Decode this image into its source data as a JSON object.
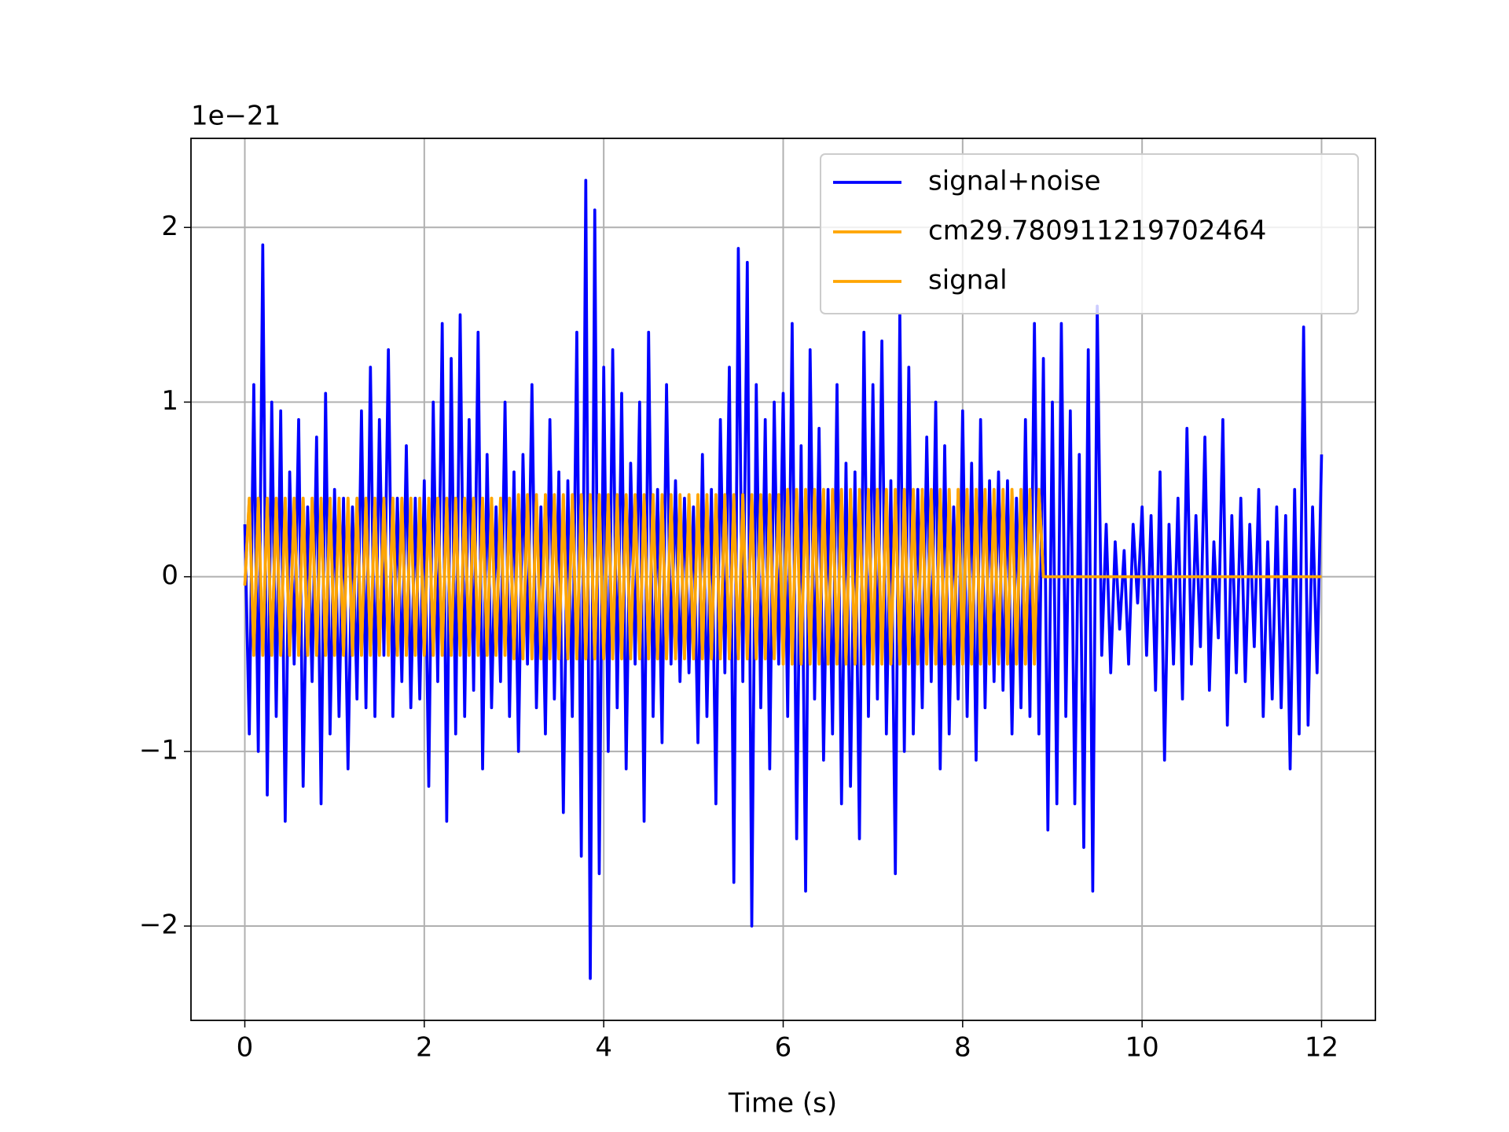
{
  "chart_data": {
    "type": "line",
    "offset_text": "1e−21",
    "x_label": "Time (s)",
    "grid": true,
    "legend": "upper right",
    "xlim": [
      -0.6,
      12.6
    ],
    "ylim": [
      -2.54,
      2.51
    ],
    "xticks": [
      0,
      2,
      4,
      6,
      8,
      10,
      12
    ],
    "yticks": [
      {
        "value": -2,
        "label": "−2"
      },
      {
        "value": -1,
        "label": "−1"
      },
      0,
      1,
      2
    ],
    "x": [
      0,
      0.05,
      0.1,
      0.15,
      0.2,
      0.25,
      0.3,
      0.35,
      0.4,
      0.45,
      0.5,
      0.55,
      0.6,
      0.65,
      0.7,
      0.75,
      0.8,
      0.85,
      0.9,
      0.95,
      1,
      1.05,
      1.1,
      1.15,
      1.2,
      1.25,
      1.3,
      1.35,
      1.4,
      1.45,
      1.5,
      1.55,
      1.6,
      1.65,
      1.7,
      1.75,
      1.8,
      1.85,
      1.9,
      1.95,
      2,
      2.05,
      2.1,
      2.15,
      2.2,
      2.25,
      2.3,
      2.35,
      2.4,
      2.45,
      2.5,
      2.55,
      2.6,
      2.65,
      2.7,
      2.75,
      2.8,
      2.85,
      2.9,
      2.95,
      3,
      3.05,
      3.1,
      3.15,
      3.2,
      3.25,
      3.3,
      3.35,
      3.4,
      3.45,
      3.5,
      3.55,
      3.6,
      3.65,
      3.7,
      3.75,
      3.8,
      3.85,
      3.9,
      3.95,
      4,
      4.05,
      4.1,
      4.15,
      4.2,
      4.25,
      4.3,
      4.35,
      4.4,
      4.45,
      4.5,
      4.55,
      4.6,
      4.65,
      4.7,
      4.75,
      4.8,
      4.85,
      4.9,
      4.95,
      5,
      5.05,
      5.1,
      5.15,
      5.2,
      5.25,
      5.3,
      5.35,
      5.4,
      5.45,
      5.5,
      5.55,
      5.6,
      5.65,
      5.7,
      5.75,
      5.8,
      5.85,
      5.9,
      5.95,
      6,
      6.05,
      6.1,
      6.15,
      6.2,
      6.25,
      6.3,
      6.35,
      6.4,
      6.45,
      6.5,
      6.55,
      6.6,
      6.65,
      6.7,
      6.75,
      6.8,
      6.85,
      6.9,
      6.95,
      7,
      7.05,
      7.1,
      7.15,
      7.2,
      7.25,
      7.3,
      7.35,
      7.4,
      7.45,
      7.5,
      7.55,
      7.6,
      7.65,
      7.7,
      7.75,
      7.8,
      7.85,
      7.9,
      7.95,
      8,
      8.05,
      8.1,
      8.15,
      8.2,
      8.25,
      8.3,
      8.35,
      8.4,
      8.45,
      8.5,
      8.55,
      8.6,
      8.65,
      8.7,
      8.75,
      8.8,
      8.85,
      8.9,
      8.95,
      9,
      9.05,
      9.1,
      9.15,
      9.2,
      9.25,
      9.3,
      9.35,
      9.4,
      9.45,
      9.5,
      9.55,
      9.6,
      9.65,
      9.7,
      9.75,
      9.8,
      9.85,
      9.9,
      9.95,
      10,
      10.05,
      10.1,
      10.15,
      10.2,
      10.25,
      10.3,
      10.35,
      10.4,
      10.45,
      10.5,
      10.55,
      10.6,
      10.65,
      10.7,
      10.75,
      10.8,
      10.85,
      10.9,
      10.95,
      11,
      11.05,
      11.1,
      11.15,
      11.2,
      11.25,
      11.3,
      11.35,
      11.4,
      11.45,
      11.5,
      11.55,
      11.6,
      11.65,
      11.7,
      11.75,
      11.8,
      11.85,
      11.9,
      11.95,
      12
    ],
    "series": [
      {
        "name": "signal+noise",
        "color": "#0000ff",
        "values": [
          0.3,
          -0.9,
          1.1,
          -1.0,
          1.9,
          -1.25,
          1.0,
          -0.8,
          0.95,
          -1.4,
          0.6,
          -0.5,
          0.9,
          -1.2,
          0.4,
          -0.6,
          0.8,
          -1.3,
          1.05,
          -0.9,
          0.5,
          -0.8,
          0.45,
          -1.1,
          0.4,
          -0.7,
          0.95,
          -0.75,
          1.2,
          -0.8,
          0.9,
          -0.45,
          1.3,
          -0.8,
          0.45,
          -0.6,
          0.75,
          -0.75,
          0.45,
          -0.7,
          0.55,
          -1.2,
          1.0,
          -0.6,
          1.45,
          -1.4,
          1.25,
          -0.9,
          1.5,
          -0.8,
          0.9,
          -0.65,
          1.4,
          -1.1,
          0.7,
          -0.75,
          0.4,
          -0.6,
          1.0,
          -0.8,
          0.6,
          -1.0,
          0.7,
          -0.5,
          1.1,
          -0.75,
          0.4,
          -0.9,
          0.9,
          -0.7,
          0.6,
          -1.35,
          0.55,
          -0.8,
          1.4,
          -1.6,
          2.27,
          -2.3,
          2.1,
          -1.7,
          1.2,
          -1.0,
          1.3,
          -0.75,
          1.05,
          -1.1,
          0.65,
          -0.5,
          1.0,
          -1.4,
          1.4,
          -0.8,
          0.5,
          -0.95,
          1.1,
          -0.5,
          0.55,
          -0.6,
          0.45,
          -0.55,
          0.4,
          -0.95,
          0.7,
          -0.8,
          0.5,
          -1.3,
          0.9,
          -0.55,
          1.2,
          -1.75,
          1.88,
          -0.6,
          1.8,
          -2.0,
          1.1,
          -0.75,
          0.9,
          -1.1,
          1.0,
          -0.5,
          1.05,
          -0.8,
          1.45,
          -1.5,
          0.75,
          -1.8,
          1.3,
          -0.7,
          0.85,
          -1.05,
          0.5,
          -0.9,
          1.1,
          -1.3,
          0.65,
          -1.2,
          0.6,
          -1.5,
          1.4,
          -0.8,
          1.1,
          -0.7,
          1.35,
          -0.9,
          0.55,
          -1.7,
          1.5,
          -1.0,
          1.2,
          -0.9,
          0.5,
          -0.75,
          0.8,
          -0.6,
          1.0,
          -1.1,
          0.75,
          -0.9,
          0.4,
          -0.7,
          0.95,
          -0.8,
          0.65,
          -1.05,
          0.9,
          -0.75,
          0.55,
          -0.6,
          0.6,
          -0.65,
          0.55,
          -0.9,
          0.45,
          -0.75,
          0.9,
          -0.8,
          1.45,
          -0.9,
          1.25,
          -1.45,
          1.0,
          -1.3,
          1.45,
          -0.8,
          0.95,
          -1.3,
          0.7,
          -1.55,
          1.3,
          -1.8,
          1.55,
          -0.45,
          0.3,
          -0.55,
          0.2,
          -0.3,
          0.15,
          -0.5,
          0.3,
          -0.15,
          0.4,
          -0.45,
          0.35,
          -0.65,
          0.6,
          -1.05,
          0.3,
          -0.5,
          0.45,
          -0.7,
          0.85,
          -0.5,
          0.35,
          -0.4,
          0.8,
          -0.65,
          0.2,
          -0.35,
          0.9,
          -0.85,
          0.35,
          -0.55,
          0.45,
          -0.6,
          0.3,
          -0.4,
          0.5,
          -0.8,
          0.2,
          -0.7,
          0.4,
          -0.75,
          0.35,
          -1.1,
          0.5,
          -0.9,
          1.43,
          -0.85,
          0.4,
          -0.55,
          0.7
        ]
      },
      {
        "name": "cm29.780911219702464",
        "color": "#ffa500",
        "values": [
          -0.05,
          0.45,
          -0.45,
          0.45,
          -0.45,
          0.45,
          -0.45,
          0.45,
          -0.45,
          0.45,
          -0.45,
          0.45,
          -0.45,
          0.45,
          -0.45,
          0.45,
          -0.45,
          0.45,
          -0.45,
          0.45,
          -0.45,
          0.45,
          -0.45,
          0.45,
          -0.45,
          0.45,
          -0.45,
          0.45,
          -0.45,
          0.45,
          -0.45,
          0.45,
          -0.45,
          0.45,
          -0.45,
          0.45,
          -0.45,
          0.45,
          -0.45,
          0.45,
          -0.45,
          0.45,
          -0.45,
          0.45,
          -0.45,
          0.45,
          -0.45,
          0.45,
          -0.45,
          0.45,
          -0.45,
          0.45,
          -0.45,
          0.45,
          -0.45,
          0.45,
          -0.45,
          0.45,
          -0.45,
          0.45,
          -0.47,
          0.47,
          -0.47,
          0.47,
          -0.47,
          0.47,
          -0.47,
          0.47,
          -0.47,
          0.47,
          -0.47,
          0.47,
          -0.47,
          0.47,
          -0.47,
          0.47,
          -0.47,
          0.47,
          -0.47,
          0.47,
          -0.47,
          0.47,
          -0.47,
          0.47,
          -0.47,
          0.47,
          -0.47,
          0.47,
          -0.47,
          0.47,
          -0.47,
          0.47,
          -0.47,
          0.47,
          -0.47,
          0.47,
          -0.47,
          0.47,
          -0.47,
          0.47,
          -0.47,
          0.47,
          -0.47,
          0.47,
          -0.47,
          0.47,
          -0.47,
          0.47,
          -0.47,
          0.47,
          -0.47,
          0.47,
          -0.47,
          0.47,
          -0.47,
          0.47,
          -0.47,
          0.47,
          -0.47,
          0.47,
          -0.5,
          0.5,
          -0.5,
          0.5,
          -0.5,
          0.5,
          -0.5,
          0.5,
          -0.5,
          0.5,
          -0.5,
          0.5,
          -0.5,
          0.5,
          -0.5,
          0.5,
          -0.5,
          0.5,
          -0.5,
          0.5,
          -0.5,
          0.5,
          -0.5,
          0.5,
          -0.5,
          0.5,
          -0.5,
          0.5,
          -0.5,
          0.5,
          -0.5,
          0.5,
          -0.5,
          0.5,
          -0.5,
          0.5,
          -0.5,
          0.5,
          -0.5,
          0.5,
          -0.5,
          0.5,
          -0.5,
          0.5,
          -0.5,
          0.5,
          -0.5,
          0.5,
          -0.5,
          0.5,
          -0.5,
          0.5,
          -0.5,
          0.5,
          -0.5,
          0.5,
          -0.5,
          0.5,
          0,
          0,
          0,
          0,
          0,
          0,
          0,
          0,
          0,
          0,
          0,
          0,
          0,
          0,
          0,
          0,
          0,
          0,
          0,
          0,
          0,
          0,
          0,
          0,
          0,
          0,
          0,
          0,
          0,
          0,
          0,
          0,
          0,
          0,
          0,
          0,
          0,
          0,
          0,
          0,
          0,
          0,
          0,
          0,
          0,
          0,
          0,
          0,
          0,
          0,
          0,
          0,
          0,
          0,
          0,
          0,
          0,
          0,
          0,
          0,
          0,
          0,
          0
        ]
      },
      {
        "name": "signal",
        "color": "#ffa500",
        "values": [
          -0.05,
          0.45,
          -0.45,
          0.45,
          -0.45,
          0.45,
          -0.45,
          0.45,
          -0.45,
          0.45,
          -0.45,
          0.45,
          -0.45,
          0.45,
          -0.45,
          0.45,
          -0.45,
          0.45,
          -0.45,
          0.45,
          -0.45,
          0.45,
          -0.45,
          0.45,
          -0.45,
          0.45,
          -0.45,
          0.45,
          -0.45,
          0.45,
          -0.45,
          0.45,
          -0.45,
          0.45,
          -0.45,
          0.45,
          -0.45,
          0.45,
          -0.45,
          0.45,
          -0.45,
          0.45,
          -0.45,
          0.45,
          -0.45,
          0.45,
          -0.45,
          0.45,
          -0.45,
          0.45,
          -0.45,
          0.45,
          -0.45,
          0.45,
          -0.45,
          0.45,
          -0.45,
          0.45,
          -0.45,
          0.45,
          -0.47,
          0.47,
          -0.47,
          0.47,
          -0.47,
          0.47,
          -0.47,
          0.47,
          -0.47,
          0.47,
          -0.47,
          0.47,
          -0.47,
          0.47,
          -0.47,
          0.47,
          -0.47,
          0.47,
          -0.47,
          0.47,
          -0.47,
          0.47,
          -0.47,
          0.47,
          -0.47,
          0.47,
          -0.47,
          0.47,
          -0.47,
          0.47,
          -0.47,
          0.47,
          -0.47,
          0.47,
          -0.47,
          0.47,
          -0.47,
          0.47,
          -0.47,
          0.47,
          -0.47,
          0.47,
          -0.47,
          0.47,
          -0.47,
          0.47,
          -0.47,
          0.47,
          -0.47,
          0.47,
          -0.47,
          0.47,
          -0.47,
          0.47,
          -0.47,
          0.47,
          -0.47,
          0.47,
          -0.47,
          0.47,
          -0.5,
          0.5,
          -0.5,
          0.5,
          -0.5,
          0.5,
          -0.5,
          0.5,
          -0.5,
          0.5,
          -0.5,
          0.5,
          -0.5,
          0.5,
          -0.5,
          0.5,
          -0.5,
          0.5,
          -0.5,
          0.5,
          -0.5,
          0.5,
          -0.5,
          0.5,
          -0.5,
          0.5,
          -0.5,
          0.5,
          -0.5,
          0.5,
          -0.5,
          0.5,
          -0.5,
          0.5,
          -0.5,
          0.5,
          -0.5,
          0.5,
          -0.5,
          0.5,
          -0.5,
          0.5,
          -0.5,
          0.5,
          -0.5,
          0.5,
          -0.5,
          0.5,
          -0.5,
          0.5,
          -0.5,
          0.5,
          -0.5,
          0.5,
          -0.5,
          0.5,
          -0.5,
          0.5,
          0,
          0,
          0,
          0,
          0,
          0,
          0,
          0,
          0,
          0,
          0,
          0,
          0,
          0,
          0,
          0,
          0,
          0,
          0,
          0,
          0,
          0,
          0,
          0,
          0,
          0,
          0,
          0,
          0,
          0,
          0,
          0,
          0,
          0,
          0,
          0,
          0,
          0,
          0,
          0,
          0,
          0,
          0,
          0,
          0,
          0,
          0,
          0,
          0,
          0,
          0,
          0,
          0,
          0,
          0,
          0,
          0,
          0,
          0,
          0,
          0,
          0,
          0
        ]
      }
    ]
  }
}
